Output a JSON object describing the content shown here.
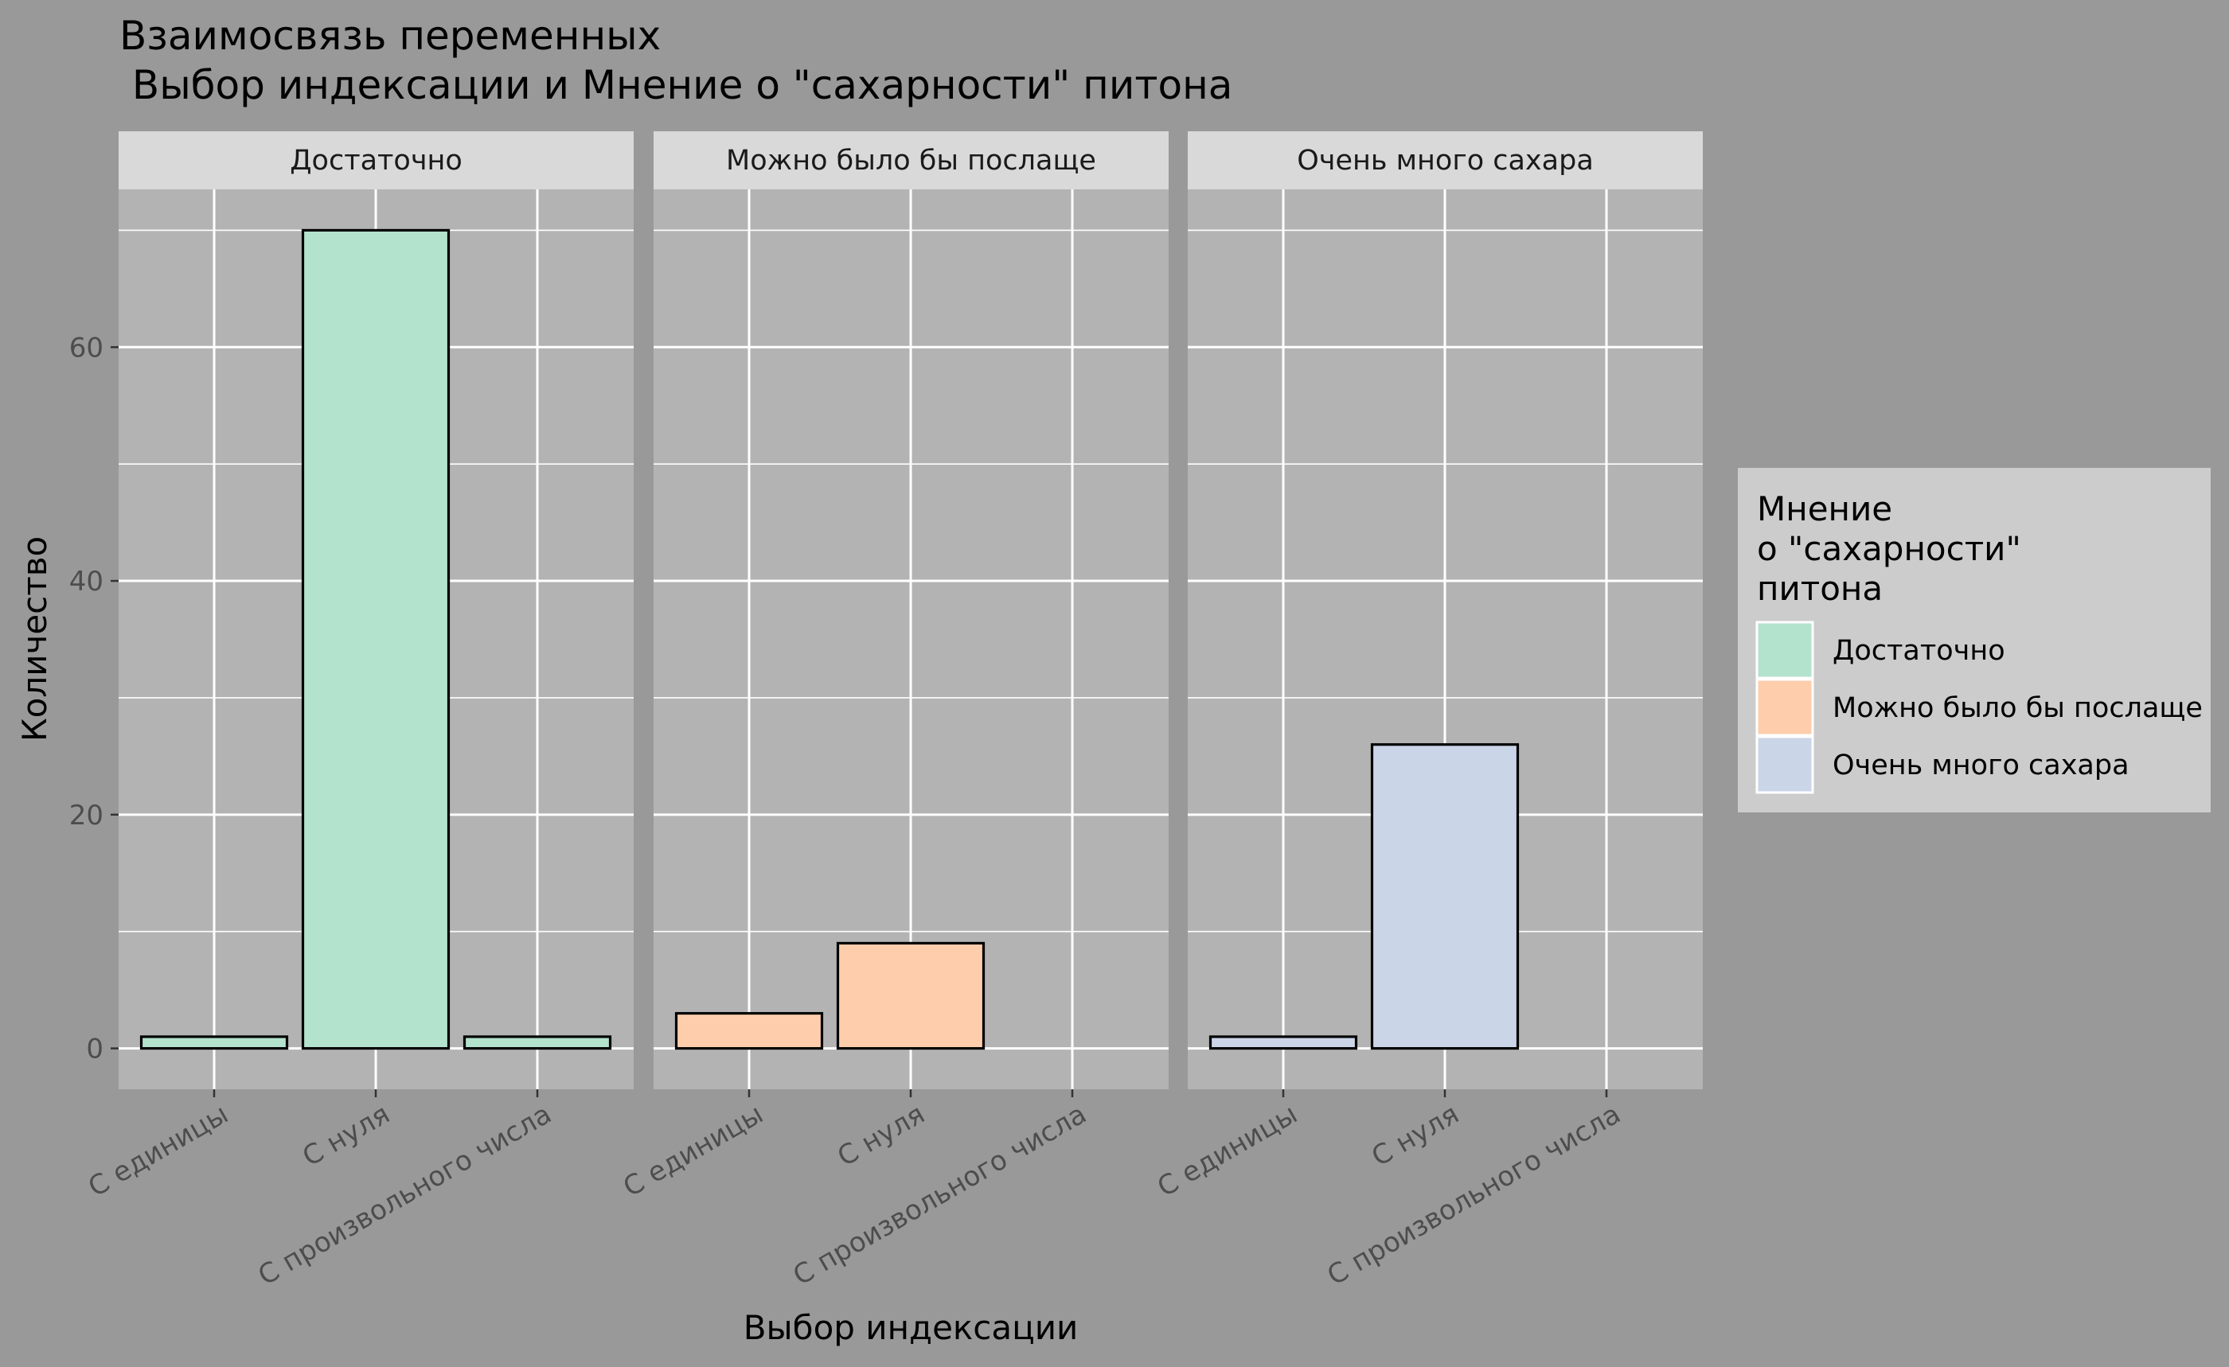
{
  "chart_data": {
    "type": "bar",
    "title_line1": "Взаимосвязь переменных",
    "title_line2": " Выбор индексации и Мнение о \"сахарности\" питона",
    "xlabel": "Выбор индексации",
    "ylabel": "Количество",
    "ylim": [
      -3.5,
      73.5
    ],
    "yticks": [
      0,
      20,
      40,
      60
    ],
    "yticks_labels": [
      "0",
      "20",
      "40",
      "60"
    ],
    "categories": [
      "С единицы",
      "С нуля",
      "С произвольного числа"
    ],
    "facets": [
      {
        "label": "Достаточно",
        "series": "Достаточно",
        "values": [
          1,
          70,
          1
        ]
      },
      {
        "label": "Можно было бы послаще",
        "series": "Можно было бы послаще",
        "values": [
          3,
          9,
          0
        ]
      },
      {
        "label": "Очень много сахара",
        "series": "Очень много сахара",
        "values": [
          1,
          26,
          0
        ]
      }
    ],
    "legend": {
      "title_lines": [
        "Мнение",
        "о \"сахарности\"",
        "питона"
      ],
      "placement": "right",
      "items": [
        {
          "label": "Достаточно",
          "color": "#b3e2cd"
        },
        {
          "label": "Можно было бы послаще",
          "color": "#fdcdac"
        },
        {
          "label": "Очень много сахара",
          "color": "#cbd5e8"
        }
      ]
    },
    "colors": {
      "plot_background": "#999999",
      "panel_background": "#b3b3b3",
      "strip_background": "#d9d9d9",
      "legend_background": "#cccccc",
      "grid": "#ffffff",
      "bar_outline": "#000000"
    },
    "grid": true
  }
}
